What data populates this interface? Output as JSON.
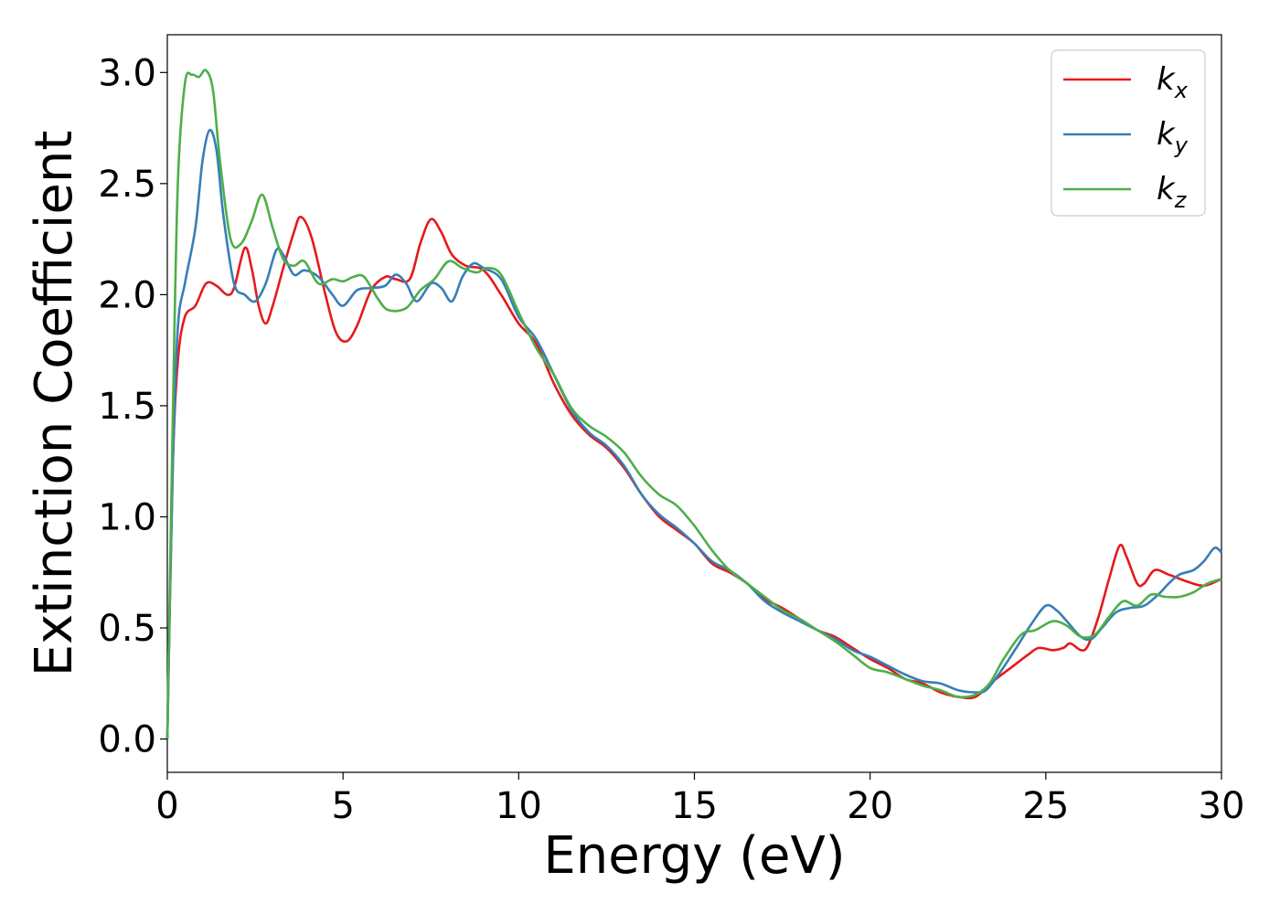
{
  "chart_data": {
    "type": "line",
    "xlabel": "Energy (eV)",
    "ylabel": "Extinction Coefficient",
    "xlim": [
      0,
      30
    ],
    "ylim": [
      -0.15,
      3.17
    ],
    "xticks": [
      0,
      5,
      10,
      15,
      20,
      25,
      30
    ],
    "xtick_labels": [
      "0",
      "5",
      "10",
      "15",
      "20",
      "25",
      "30"
    ],
    "yticks": [
      0.0,
      0.5,
      1.0,
      1.5,
      2.0,
      2.5,
      3.0
    ],
    "ytick_labels": [
      "0.0",
      "0.5",
      "1.0",
      "1.5",
      "2.0",
      "2.5",
      "3.0"
    ],
    "grid": false,
    "legend_position": "top-right",
    "series": [
      {
        "name": "k",
        "subscript": "x",
        "color": "#e41a1c",
        "points": [
          [
            0,
            0.0
          ],
          [
            0.15,
            1.2
          ],
          [
            0.3,
            1.7
          ],
          [
            0.5,
            1.9
          ],
          [
            0.8,
            1.95
          ],
          [
            1.1,
            2.05
          ],
          [
            1.4,
            2.04
          ],
          [
            1.7,
            2.0
          ],
          [
            1.9,
            2.03
          ],
          [
            2.2,
            2.21
          ],
          [
            2.4,
            2.12
          ],
          [
            2.6,
            1.95
          ],
          [
            2.8,
            1.87
          ],
          [
            3.0,
            1.95
          ],
          [
            3.3,
            2.12
          ],
          [
            3.6,
            2.28
          ],
          [
            3.8,
            2.35
          ],
          [
            4.1,
            2.26
          ],
          [
            4.5,
            2.0
          ],
          [
            4.8,
            1.83
          ],
          [
            5.1,
            1.79
          ],
          [
            5.4,
            1.86
          ],
          [
            5.8,
            2.02
          ],
          [
            6.2,
            2.08
          ],
          [
            6.5,
            2.07
          ],
          [
            6.9,
            2.07
          ],
          [
            7.2,
            2.23
          ],
          [
            7.5,
            2.34
          ],
          [
            7.8,
            2.28
          ],
          [
            8.1,
            2.18
          ],
          [
            8.5,
            2.13
          ],
          [
            9.0,
            2.11
          ],
          [
            9.5,
            2.0
          ],
          [
            10.0,
            1.87
          ],
          [
            10.5,
            1.78
          ],
          [
            11.0,
            1.6
          ],
          [
            11.5,
            1.46
          ],
          [
            12.0,
            1.37
          ],
          [
            12.5,
            1.31
          ],
          [
            13.0,
            1.22
          ],
          [
            13.5,
            1.1
          ],
          [
            14.0,
            1.0
          ],
          [
            14.5,
            0.94
          ],
          [
            15.0,
            0.88
          ],
          [
            15.5,
            0.79
          ],
          [
            16.0,
            0.75
          ],
          [
            16.5,
            0.7
          ],
          [
            17.0,
            0.63
          ],
          [
            17.5,
            0.59
          ],
          [
            18.0,
            0.54
          ],
          [
            18.5,
            0.49
          ],
          [
            19.0,
            0.46
          ],
          [
            19.5,
            0.41
          ],
          [
            20.0,
            0.36
          ],
          [
            20.5,
            0.32
          ],
          [
            21.0,
            0.27
          ],
          [
            21.5,
            0.25
          ],
          [
            22.0,
            0.21
          ],
          [
            22.5,
            0.19
          ],
          [
            23.0,
            0.19
          ],
          [
            23.5,
            0.26
          ],
          [
            24.0,
            0.32
          ],
          [
            24.5,
            0.38
          ],
          [
            24.8,
            0.41
          ],
          [
            25.2,
            0.4
          ],
          [
            25.5,
            0.41
          ],
          [
            25.7,
            0.43
          ],
          [
            26.0,
            0.4
          ],
          [
            26.2,
            0.42
          ],
          [
            26.5,
            0.55
          ],
          [
            26.8,
            0.72
          ],
          [
            27.1,
            0.87
          ],
          [
            27.3,
            0.82
          ],
          [
            27.6,
            0.7
          ],
          [
            27.8,
            0.7
          ],
          [
            28.1,
            0.76
          ],
          [
            28.5,
            0.74
          ],
          [
            29.0,
            0.71
          ],
          [
            29.5,
            0.69
          ],
          [
            30.0,
            0.72
          ]
        ]
      },
      {
        "name": "k",
        "subscript": "y",
        "color": "#377eb8",
        "points": [
          [
            0,
            0.0
          ],
          [
            0.15,
            1.2
          ],
          [
            0.3,
            1.85
          ],
          [
            0.5,
            2.05
          ],
          [
            0.8,
            2.3
          ],
          [
            1.0,
            2.6
          ],
          [
            1.2,
            2.74
          ],
          [
            1.4,
            2.65
          ],
          [
            1.6,
            2.35
          ],
          [
            1.9,
            2.05
          ],
          [
            2.2,
            2.0
          ],
          [
            2.5,
            1.97
          ],
          [
            2.8,
            2.05
          ],
          [
            3.1,
            2.2
          ],
          [
            3.3,
            2.18
          ],
          [
            3.6,
            2.09
          ],
          [
            3.9,
            2.11
          ],
          [
            4.3,
            2.08
          ],
          [
            4.7,
            2.0
          ],
          [
            5.0,
            1.95
          ],
          [
            5.4,
            2.02
          ],
          [
            5.8,
            2.03
          ],
          [
            6.2,
            2.04
          ],
          [
            6.5,
            2.09
          ],
          [
            6.8,
            2.05
          ],
          [
            7.1,
            1.97
          ],
          [
            7.5,
            2.05
          ],
          [
            7.8,
            2.03
          ],
          [
            8.1,
            1.97
          ],
          [
            8.4,
            2.08
          ],
          [
            8.7,
            2.14
          ],
          [
            9.0,
            2.12
          ],
          [
            9.5,
            2.07
          ],
          [
            10.0,
            1.9
          ],
          [
            10.5,
            1.8
          ],
          [
            11.0,
            1.64
          ],
          [
            11.5,
            1.48
          ],
          [
            12.0,
            1.38
          ],
          [
            12.5,
            1.32
          ],
          [
            13.0,
            1.23
          ],
          [
            13.5,
            1.1
          ],
          [
            14.0,
            1.01
          ],
          [
            14.5,
            0.95
          ],
          [
            15.0,
            0.88
          ],
          [
            15.5,
            0.8
          ],
          [
            16.0,
            0.76
          ],
          [
            16.5,
            0.7
          ],
          [
            17.0,
            0.62
          ],
          [
            17.5,
            0.57
          ],
          [
            18.0,
            0.53
          ],
          [
            18.5,
            0.49
          ],
          [
            19.0,
            0.45
          ],
          [
            19.5,
            0.4
          ],
          [
            20.0,
            0.37
          ],
          [
            20.5,
            0.33
          ],
          [
            21.0,
            0.29
          ],
          [
            21.5,
            0.26
          ],
          [
            22.0,
            0.25
          ],
          [
            22.5,
            0.22
          ],
          [
            23.0,
            0.21
          ],
          [
            23.3,
            0.22
          ],
          [
            23.7,
            0.3
          ],
          [
            24.2,
            0.42
          ],
          [
            24.6,
            0.52
          ],
          [
            25.0,
            0.6
          ],
          [
            25.3,
            0.58
          ],
          [
            25.6,
            0.53
          ],
          [
            26.0,
            0.46
          ],
          [
            26.3,
            0.45
          ],
          [
            26.6,
            0.5
          ],
          [
            27.0,
            0.57
          ],
          [
            27.4,
            0.59
          ],
          [
            27.8,
            0.6
          ],
          [
            28.2,
            0.65
          ],
          [
            28.5,
            0.7
          ],
          [
            28.8,
            0.74
          ],
          [
            29.2,
            0.76
          ],
          [
            29.5,
            0.8
          ],
          [
            29.8,
            0.86
          ],
          [
            30.0,
            0.84
          ]
        ]
      },
      {
        "name": "k",
        "subscript": "z",
        "color": "#4daf4a",
        "points": [
          [
            0,
            0.0
          ],
          [
            0.15,
            1.4
          ],
          [
            0.3,
            2.5
          ],
          [
            0.5,
            2.95
          ],
          [
            0.7,
            2.99
          ],
          [
            0.9,
            2.98
          ],
          [
            1.1,
            3.01
          ],
          [
            1.3,
            2.92
          ],
          [
            1.5,
            2.6
          ],
          [
            1.8,
            2.25
          ],
          [
            2.1,
            2.23
          ],
          [
            2.4,
            2.33
          ],
          [
            2.7,
            2.45
          ],
          [
            3.0,
            2.3
          ],
          [
            3.3,
            2.16
          ],
          [
            3.6,
            2.13
          ],
          [
            3.9,
            2.15
          ],
          [
            4.3,
            2.05
          ],
          [
            4.7,
            2.07
          ],
          [
            5.0,
            2.06
          ],
          [
            5.3,
            2.08
          ],
          [
            5.6,
            2.08
          ],
          [
            6.0,
            1.98
          ],
          [
            6.3,
            1.93
          ],
          [
            6.8,
            1.94
          ],
          [
            7.2,
            2.02
          ],
          [
            7.6,
            2.07
          ],
          [
            8.0,
            2.15
          ],
          [
            8.4,
            2.12
          ],
          [
            8.8,
            2.1
          ],
          [
            9.1,
            2.12
          ],
          [
            9.5,
            2.09
          ],
          [
            10.0,
            1.92
          ],
          [
            10.5,
            1.76
          ],
          [
            11.0,
            1.64
          ],
          [
            11.5,
            1.49
          ],
          [
            12.0,
            1.41
          ],
          [
            12.5,
            1.36
          ],
          [
            13.0,
            1.29
          ],
          [
            13.5,
            1.18
          ],
          [
            14.0,
            1.1
          ],
          [
            14.5,
            1.05
          ],
          [
            15.0,
            0.96
          ],
          [
            15.5,
            0.85
          ],
          [
            16.0,
            0.76
          ],
          [
            16.5,
            0.7
          ],
          [
            17.0,
            0.64
          ],
          [
            17.5,
            0.58
          ],
          [
            18.0,
            0.54
          ],
          [
            18.5,
            0.49
          ],
          [
            19.0,
            0.44
          ],
          [
            19.5,
            0.38
          ],
          [
            20.0,
            0.32
          ],
          [
            20.5,
            0.3
          ],
          [
            21.0,
            0.27
          ],
          [
            21.5,
            0.24
          ],
          [
            22.0,
            0.22
          ],
          [
            22.5,
            0.19
          ],
          [
            23.0,
            0.2
          ],
          [
            23.4,
            0.25
          ],
          [
            23.8,
            0.36
          ],
          [
            24.3,
            0.47
          ],
          [
            24.7,
            0.49
          ],
          [
            25.2,
            0.53
          ],
          [
            25.6,
            0.51
          ],
          [
            26.0,
            0.46
          ],
          [
            26.4,
            0.47
          ],
          [
            26.8,
            0.55
          ],
          [
            27.2,
            0.62
          ],
          [
            27.6,
            0.6
          ],
          [
            28.0,
            0.65
          ],
          [
            28.4,
            0.64
          ],
          [
            28.8,
            0.64
          ],
          [
            29.2,
            0.66
          ],
          [
            29.6,
            0.7
          ],
          [
            30.0,
            0.72
          ]
        ]
      }
    ]
  }
}
